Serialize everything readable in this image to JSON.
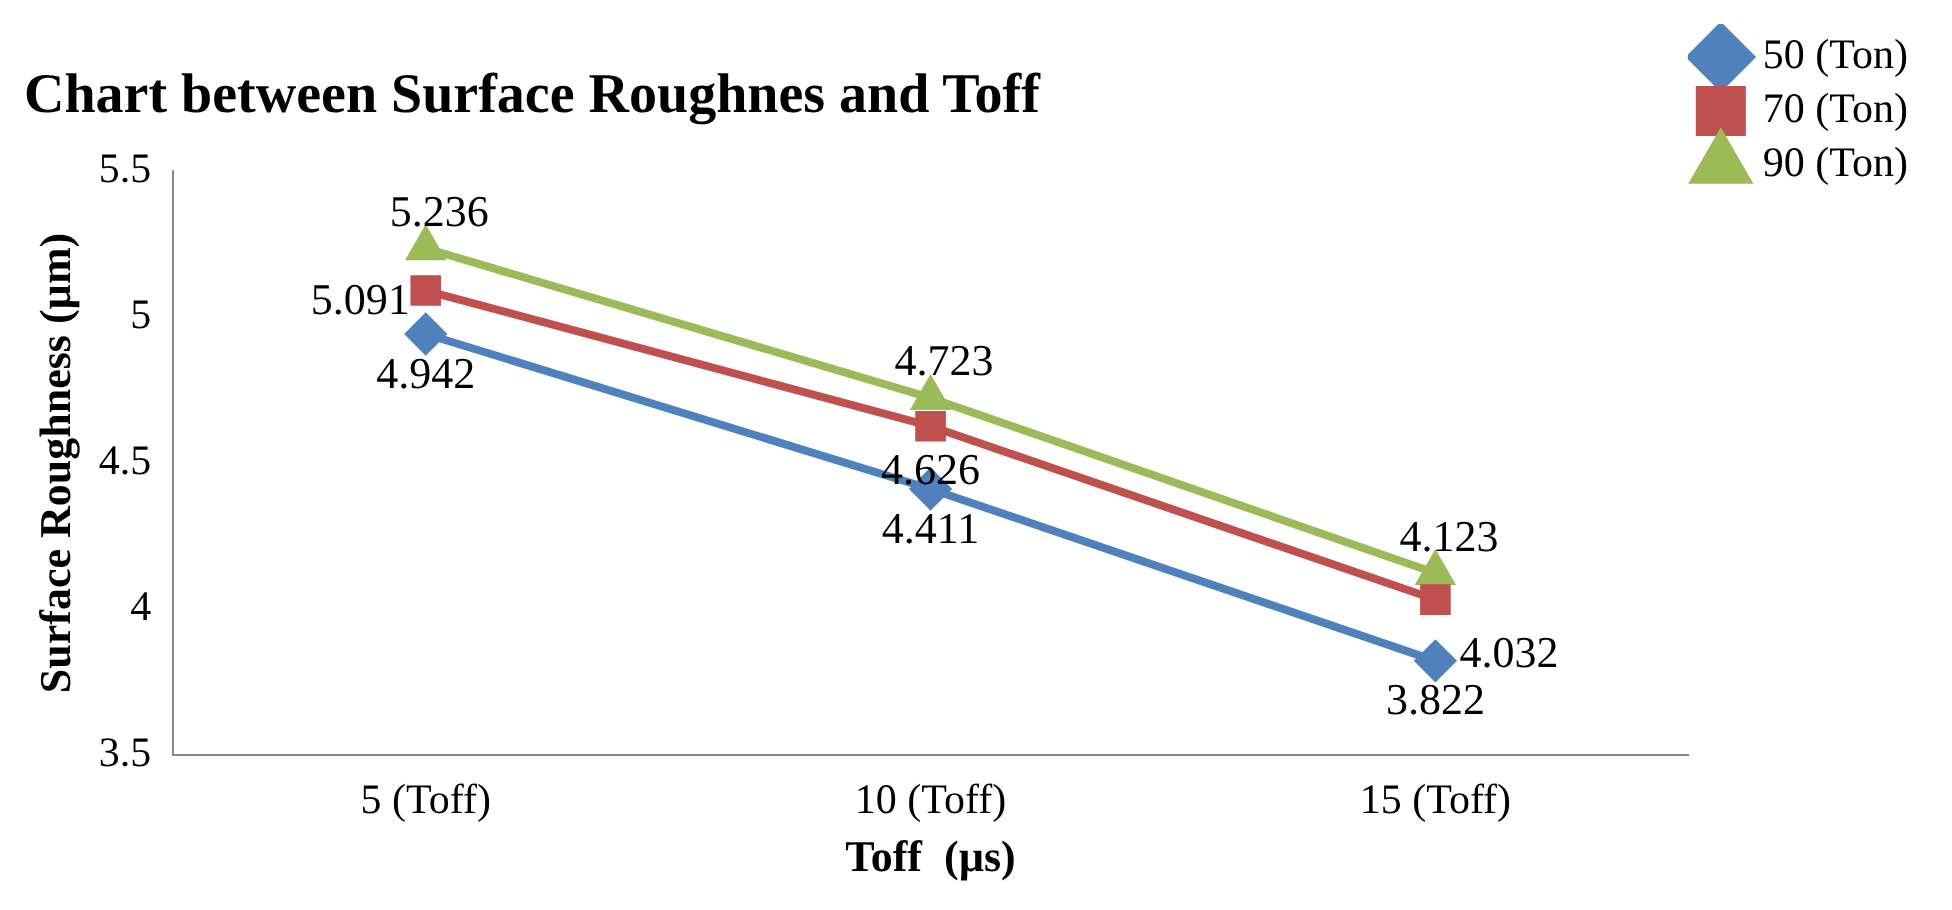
{
  "chart_data": {
    "type": "line",
    "title": "Chart between Surface Roughnes and Toff",
    "xlabel": "Toff  (µs)",
    "ylabel": "Surface Roughness (µm)",
    "categories": [
      "5 (Toff)",
      "10 (Toff)",
      "15 (Toff)"
    ],
    "series": [
      {
        "name": "50 (Ton)",
        "color": "#4f81bd",
        "marker": "diamond",
        "values": [
          4.942,
          4.411,
          3.822
        ]
      },
      {
        "name": "70 (Ton)",
        "color": "#c0504d",
        "marker": "square",
        "values": [
          5.091,
          4.626,
          4.032
        ]
      },
      {
        "name": "90 (Ton)",
        "color": "#9bbb59",
        "marker": "triangle",
        "values": [
          5.236,
          4.723,
          4.123
        ]
      }
    ],
    "ylim": [
      3.5,
      5.5
    ],
    "yticks": [
      3.5,
      4,
      4.5,
      5,
      5.5
    ],
    "grid": false,
    "legend": "top right",
    "data_labels": true
  }
}
